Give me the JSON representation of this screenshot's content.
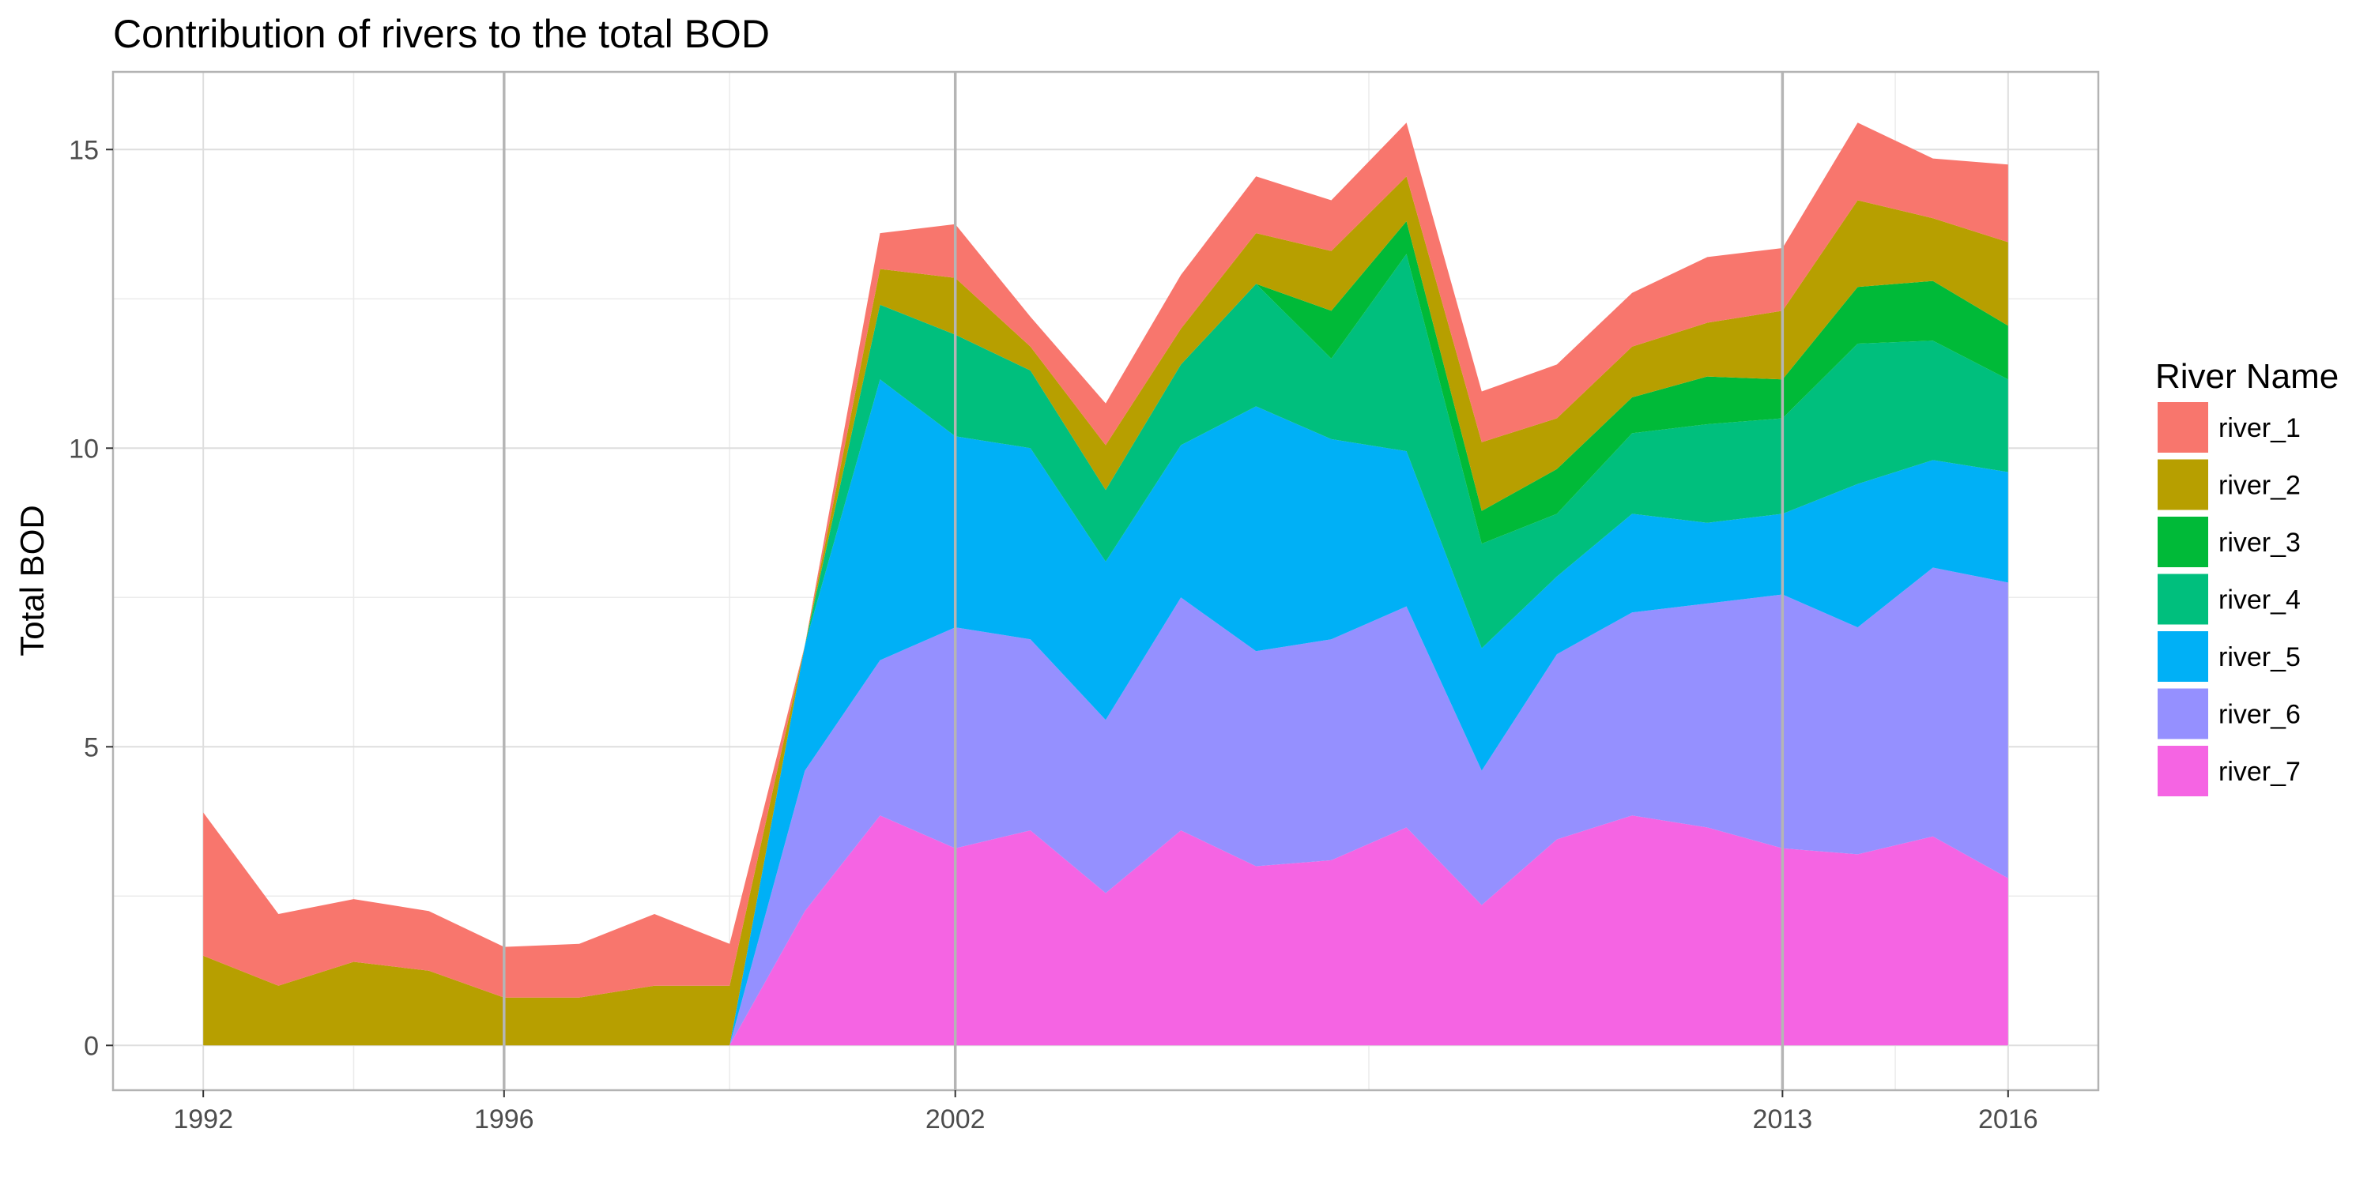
{
  "chart_data": {
    "type": "area",
    "stacked": true,
    "title": "Contribution of rivers to the total BOD",
    "xlabel": "",
    "ylabel": "Total BOD",
    "xlim": [
      1990.8,
      2017.2
    ],
    "ylim": [
      -0.75,
      16.3
    ],
    "x_ticks": [
      1992,
      1996,
      2002,
      2013,
      2016
    ],
    "y_ticks": [
      0,
      5,
      10,
      15
    ],
    "x_vlines": [
      1996,
      2002,
      2013
    ],
    "legend": {
      "title": "River Name",
      "placement": "right"
    },
    "x": [
      1992,
      1993,
      1994,
      1995,
      1996,
      1997,
      1998,
      1999,
      2000,
      2001,
      2002,
      2003,
      2004,
      2005,
      2006,
      2007,
      2008,
      2009,
      2010,
      2011,
      2012,
      2013,
      2014,
      2015,
      2016
    ],
    "series": [
      {
        "name": "river_1",
        "color": "#F8766D",
        "values": [
          2.4,
          1.2,
          1.05,
          1.0,
          0.85,
          0.9,
          1.2,
          0.7,
          0.0,
          0.6,
          0.9,
          0.5,
          0.7,
          0.9,
          0.95,
          0.85,
          0.9,
          0.85,
          0.9,
          0.9,
          1.1,
          1.05,
          1.3,
          1.0,
          1.3
        ]
      },
      {
        "name": "river_2",
        "color": "#B79F00",
        "values": [
          1.5,
          1.0,
          1.4,
          1.25,
          0.8,
          0.8,
          1.0,
          1.0,
          0.0,
          0.6,
          0.95,
          0.4,
          0.75,
          0.6,
          0.85,
          1.0,
          0.75,
          1.15,
          0.85,
          0.85,
          0.9,
          1.15,
          1.45,
          1.05,
          1.4
        ]
      },
      {
        "name": "river_3",
        "color": "#00BA38",
        "values": [
          0,
          0,
          0,
          0,
          0,
          0,
          0,
          0,
          0,
          0,
          0,
          0,
          0,
          0,
          0,
          0.8,
          0.55,
          0.55,
          0.75,
          0.6,
          0.8,
          0.65,
          0.95,
          1.0,
          0.9
        ]
      },
      {
        "name": "river_4",
        "color": "#00BF7D",
        "values": [
          0,
          0,
          0,
          0,
          0,
          0,
          0,
          0,
          0,
          1.25,
          1.7,
          1.3,
          1.2,
          1.35,
          2.05,
          1.35,
          3.3,
          1.75,
          1.05,
          1.35,
          1.65,
          1.6,
          2.35,
          2.0,
          1.55
        ]
      },
      {
        "name": "river_5",
        "color": "#00B0F6",
        "values": [
          0,
          0,
          0,
          0,
          0,
          0,
          0,
          0,
          2.1,
          4.7,
          3.2,
          3.2,
          2.65,
          2.55,
          4.1,
          3.35,
          2.6,
          2.05,
          1.3,
          1.65,
          1.35,
          1.35,
          2.4,
          1.8,
          1.85
        ]
      },
      {
        "name": "river_6",
        "color": "#9590FF",
        "values": [
          0,
          0,
          0,
          0,
          0,
          0,
          0,
          0,
          2.35,
          2.6,
          3.7,
          3.2,
          2.9,
          3.9,
          3.6,
          3.7,
          3.7,
          2.25,
          3.1,
          3.4,
          3.75,
          4.25,
          3.8,
          4.5,
          4.95
        ]
      },
      {
        "name": "river_7",
        "color": "#F564E3",
        "values": [
          0,
          0,
          0,
          0,
          0,
          0,
          0,
          0,
          2.25,
          3.85,
          3.3,
          3.6,
          2.55,
          3.6,
          3.0,
          3.1,
          3.65,
          2.35,
          3.45,
          3.85,
          3.65,
          3.3,
          3.2,
          3.5,
          2.8
        ]
      }
    ]
  }
}
